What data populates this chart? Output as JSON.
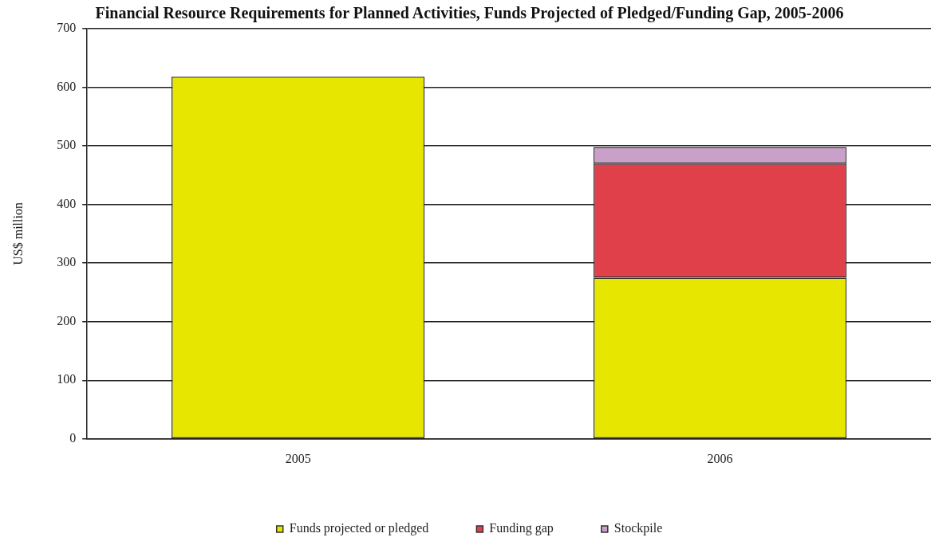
{
  "chart_data": {
    "type": "bar",
    "title": "Financial Resource Requirements for Planned Activities, Funds Projected of Pledged/Funding Gap, 2005-2006",
    "ylabel": "US$ million",
    "categories": [
      "2005",
      "2006"
    ],
    "stacked": true,
    "series": [
      {
        "name": "Funds projected or pledged",
        "color": "#e6e600",
        "values": [
          618,
          275
        ]
      },
      {
        "name": "Funding gap",
        "color": "#e0404a",
        "values": [
          null,
          195
        ]
      },
      {
        "name": "Stockpile",
        "color": "#c9a0c8",
        "values": [
          null,
          28
        ]
      }
    ],
    "ylim": [
      0,
      700
    ],
    "yticks": [
      0,
      100,
      200,
      300,
      400,
      500,
      600,
      700
    ],
    "grid": "y",
    "legend": "bottom"
  }
}
